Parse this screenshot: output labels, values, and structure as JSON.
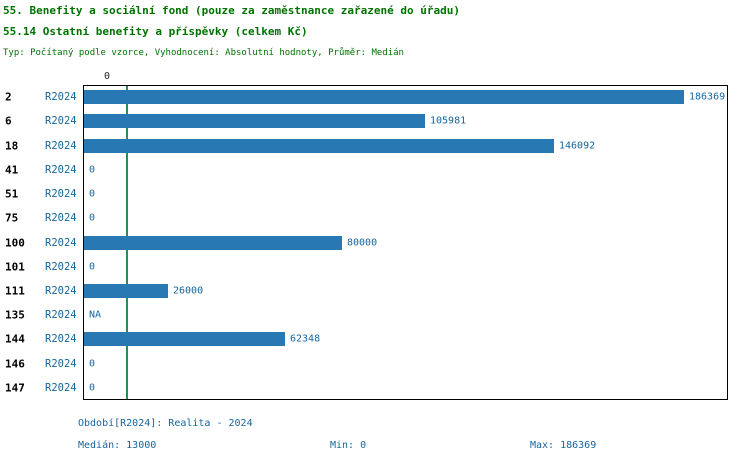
{
  "header": {
    "title_line1": "55. Benefity a sociální fond (pouze za zaměstnance zařazené do úřadu)",
    "title_line2": "55.14 Ostatní benefity a příspěvky (celkem Kč)",
    "subtitle": "Typ: Počítaný podle vzorce, Vyhodnocení: Absolutní hodnoty, Průměr: Medián"
  },
  "chart_data": {
    "type": "bar",
    "orientation": "horizontal",
    "title": "55.14 Ostatní benefity a příspěvky (celkem Kč)",
    "categories": [
      "2",
      "6",
      "18",
      "41",
      "51",
      "75",
      "100",
      "101",
      "111",
      "135",
      "144",
      "146",
      "147"
    ],
    "series_label": "R2024",
    "values": [
      186369,
      105981,
      146092,
      0,
      0,
      0,
      80000,
      0,
      26000,
      null,
      62348,
      0,
      0
    ],
    "value_labels": [
      "186369",
      "105981",
      "146092",
      "0",
      "0",
      "0",
      "80000",
      "0",
      "26000",
      "NA",
      "62348",
      "0",
      "0"
    ],
    "xlim": [
      0,
      200000
    ],
    "top_axis_tick": "0",
    "median_value": 13000,
    "min_value": 0,
    "max_value": 186369,
    "bar_color": "#2878b4",
    "median_line_color": "#2e8b57",
    "grid": false,
    "legend_position": "none"
  },
  "footer": {
    "period": "Období[R2024]: Realita - 2024",
    "median": "Medián: 13000",
    "min": "Min: 0",
    "max": "Max: 186369"
  }
}
